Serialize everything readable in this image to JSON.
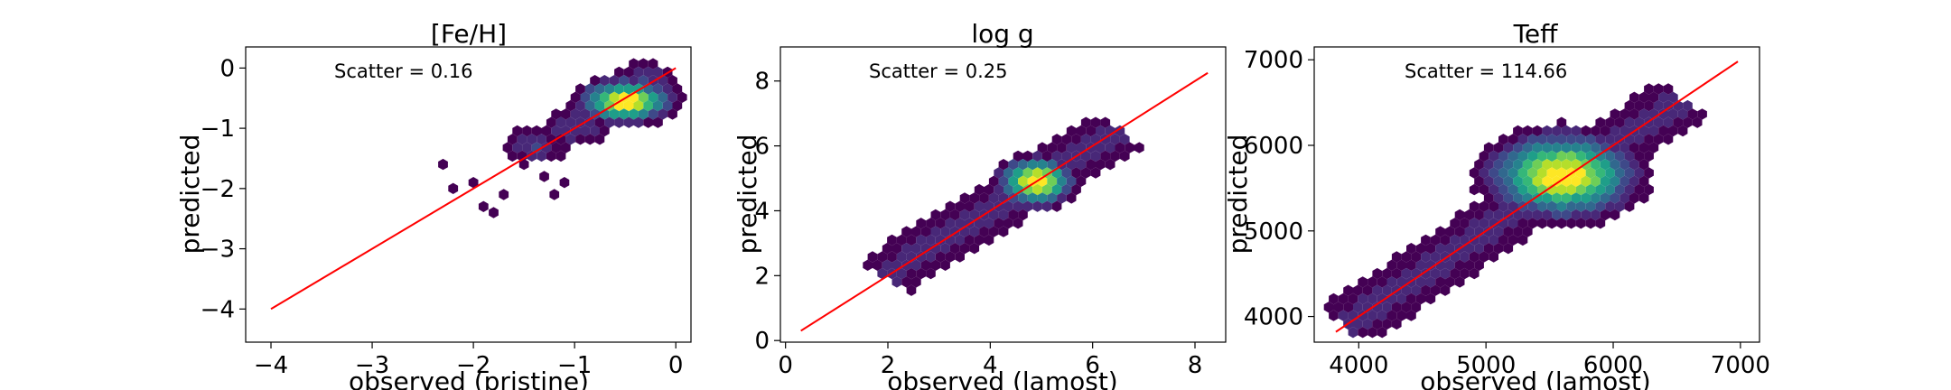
{
  "chart_data": [
    {
      "type": "hexbin",
      "title": "[Fe/H]",
      "xlabel": "observed (pristine)",
      "ylabel": "predicted",
      "xlim": [
        -4.25,
        0.15
      ],
      "ylim": [
        -4.55,
        0.35
      ],
      "xticks": [
        -4,
        -3,
        -2,
        -1,
        0
      ],
      "yticks": [
        -4,
        -3,
        -2,
        -1,
        0
      ],
      "annotation": "Scatter = 0.16",
      "one_to_one_line": [
        [
          -4,
          -4
        ],
        [
          0,
          0
        ]
      ],
      "line_color": "#ff0000",
      "density": {
        "core_center": [
          -0.5,
          -0.55
        ],
        "core_spread": [
          0.28,
          0.22
        ],
        "body_points": [
          [
            -1.0,
            -1.0
          ],
          [
            -1.4,
            -1.3
          ],
          [
            -0.3,
            -0.2
          ],
          [
            -0.8,
            -0.7
          ]
        ],
        "sparse_points": [
          [
            -2.0,
            -1.9
          ],
          [
            -2.2,
            -2.0
          ],
          [
            -1.8,
            -2.4
          ],
          [
            -1.5,
            -1.6
          ],
          [
            -2.3,
            -1.6
          ],
          [
            -1.3,
            -1.8
          ],
          [
            -1.1,
            -1.9
          ],
          [
            -1.7,
            -2.1
          ],
          [
            -1.9,
            -2.3
          ],
          [
            -1.2,
            -2.1
          ]
        ]
      }
    },
    {
      "type": "hexbin",
      "title": "log g",
      "xlabel": "observed (lamost)",
      "ylabel": "predicted",
      "xlim": [
        -0.1,
        8.6
      ],
      "ylim": [
        -0.05,
        9.05
      ],
      "xticks": [
        0,
        2,
        4,
        6,
        8
      ],
      "yticks": [
        0,
        2,
        4,
        6,
        8
      ],
      "annotation": "Scatter = 0.25",
      "one_to_one_line": [
        [
          0.3,
          0.3
        ],
        [
          8.25,
          8.25
        ]
      ],
      "line_color": "#ff0000",
      "density": {
        "core_center": [
          4.9,
          4.9
        ],
        "core_spread": [
          0.45,
          0.45
        ],
        "body_range": [
          [
            1.9,
            1.95
          ],
          [
            6.5,
            6.5
          ]
        ],
        "spread_perp": 0.55
      }
    },
    {
      "type": "hexbin",
      "title": "Teff",
      "xlabel": "observed (lamost)",
      "ylabel": "predicted",
      "xlim": [
        3650,
        7150
      ],
      "ylim": [
        3700,
        7150
      ],
      "xticks": [
        4000,
        5000,
        6000,
        7000
      ],
      "yticks": [
        4000,
        5000,
        6000,
        7000
      ],
      "annotation": "Scatter = 114.66",
      "one_to_one_line": [
        [
          3820,
          3820
        ],
        [
          6980,
          6980
        ]
      ],
      "line_color": "#ff0000",
      "density": {
        "core_center": [
          5600,
          5650
        ],
        "core_spread": [
          350,
          300
        ],
        "body_range": [
          [
            3880,
            3880
          ],
          [
            6550,
            6550
          ]
        ],
        "spread_perp": 230
      }
    }
  ]
}
